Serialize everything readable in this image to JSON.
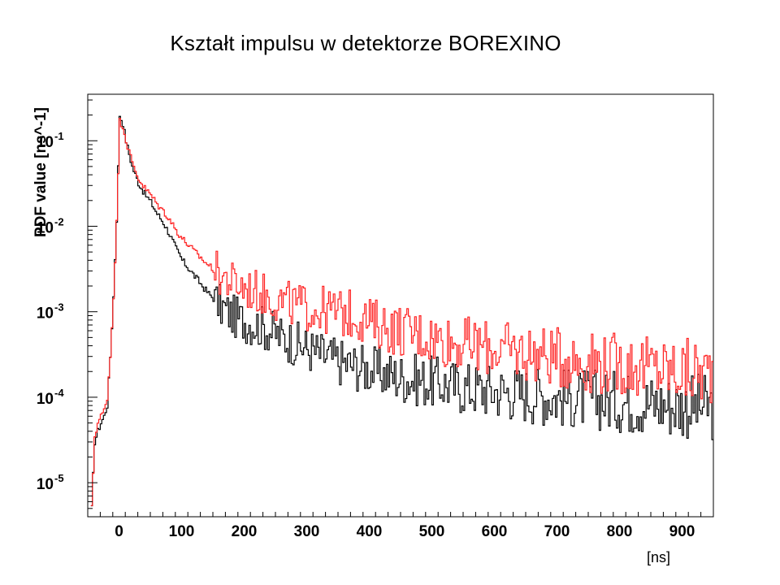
{
  "chart_data": {
    "type": "line",
    "title": "Kształt impulsu w detektorze BOREXINO",
    "xlabel": "[ns]",
    "ylabel": "PDF value [ns^-1]",
    "x_scale": "linear",
    "y_scale": "log",
    "xlim": [
      -50,
      950
    ],
    "ylim": [
      4e-06,
      0.35
    ],
    "grid": false,
    "legend": "none",
    "x_ticks": [
      0,
      100,
      200,
      300,
      400,
      500,
      600,
      700,
      800,
      900
    ],
    "y_ticks": [
      {
        "value": 0.1,
        "mantissa": "10",
        "exp": "-1"
      },
      {
        "value": 0.01,
        "mantissa": "10",
        "exp": "-2"
      },
      {
        "value": 0.001,
        "mantissa": "10",
        "exp": "-3"
      },
      {
        "value": 0.0001,
        "mantissa": "10",
        "exp": "-4"
      },
      {
        "value": 1e-05,
        "mantissa": "10",
        "exp": "-5"
      }
    ],
    "series": [
      {
        "color": "#000000",
        "points": [
          [
            -45,
            5e-06
          ],
          [
            -40,
            3e-05
          ],
          [
            -35,
            4e-05
          ],
          [
            -30,
            5e-05
          ],
          [
            -25,
            6e-05
          ],
          [
            -20,
            8e-05
          ],
          [
            -15,
            0.0003
          ],
          [
            -10,
            0.0015
          ],
          [
            -5,
            0.012
          ],
          [
            0,
            0.2
          ],
          [
            5,
            0.16
          ],
          [
            10,
            0.1
          ],
          [
            15,
            0.07
          ],
          [
            20,
            0.05
          ],
          [
            30,
            0.032
          ],
          [
            40,
            0.024
          ],
          [
            50,
            0.019
          ],
          [
            60,
            0.014
          ],
          [
            70,
            0.011
          ],
          [
            80,
            0.008
          ],
          [
            90,
            0.0055
          ],
          [
            100,
            0.004
          ],
          [
            120,
            0.0026
          ],
          [
            140,
            0.0017
          ],
          [
            160,
            0.0012
          ],
          [
            180,
            0.0009
          ],
          [
            200,
            0.00078
          ],
          [
            220,
            0.0007
          ],
          [
            240,
            0.0006
          ],
          [
            260,
            0.0005
          ],
          [
            280,
            0.00043
          ],
          [
            300,
            0.00037
          ],
          [
            320,
            0.00032
          ],
          [
            340,
            0.00028
          ],
          [
            360,
            0.00025
          ],
          [
            380,
            0.00023
          ],
          [
            400,
            0.00021
          ],
          [
            450,
            0.00017
          ],
          [
            500,
            0.00015
          ],
          [
            550,
            0.00013
          ],
          [
            600,
            0.00012
          ],
          [
            650,
            0.00011
          ],
          [
            700,
            0.0001
          ],
          [
            750,
            9.5e-05
          ],
          [
            800,
            9e-05
          ],
          [
            850,
            8.5e-05
          ],
          [
            900,
            8e-05
          ],
          [
            950,
            7.5e-05
          ]
        ]
      },
      {
        "color": "#ff2020",
        "points": [
          [
            -45,
            5e-06
          ],
          [
            -40,
            3.5e-05
          ],
          [
            -35,
            5e-05
          ],
          [
            -30,
            6e-05
          ],
          [
            -25,
            7e-05
          ],
          [
            -20,
            0.0001
          ],
          [
            -15,
            0.0003
          ],
          [
            -10,
            0.0015
          ],
          [
            -5,
            0.011
          ],
          [
            0,
            0.17
          ],
          [
            5,
            0.15
          ],
          [
            10,
            0.1
          ],
          [
            15,
            0.075
          ],
          [
            20,
            0.055
          ],
          [
            30,
            0.036
          ],
          [
            40,
            0.028
          ],
          [
            50,
            0.023
          ],
          [
            60,
            0.018
          ],
          [
            70,
            0.015
          ],
          [
            80,
            0.012
          ],
          [
            90,
            0.009
          ],
          [
            100,
            0.0072
          ],
          [
            120,
            0.005
          ],
          [
            140,
            0.0036
          ],
          [
            160,
            0.0027
          ],
          [
            180,
            0.0022
          ],
          [
            200,
            0.0019
          ],
          [
            220,
            0.0017
          ],
          [
            240,
            0.0015
          ],
          [
            260,
            0.0013
          ],
          [
            280,
            0.0012
          ],
          [
            300,
            0.0011
          ],
          [
            320,
            0.00105
          ],
          [
            340,
            0.001
          ],
          [
            360,
            0.00095
          ],
          [
            380,
            0.0009
          ],
          [
            400,
            0.00075
          ],
          [
            450,
            0.0006
          ],
          [
            500,
            0.0005
          ],
          [
            550,
            0.00042
          ],
          [
            600,
            0.00037
          ],
          [
            650,
            0.00033
          ],
          [
            700,
            0.00029
          ],
          [
            750,
            0.00026
          ],
          [
            800,
            0.00024
          ],
          [
            850,
            0.00022
          ],
          [
            900,
            0.0002
          ],
          [
            950,
            0.00019
          ]
        ]
      }
    ]
  }
}
